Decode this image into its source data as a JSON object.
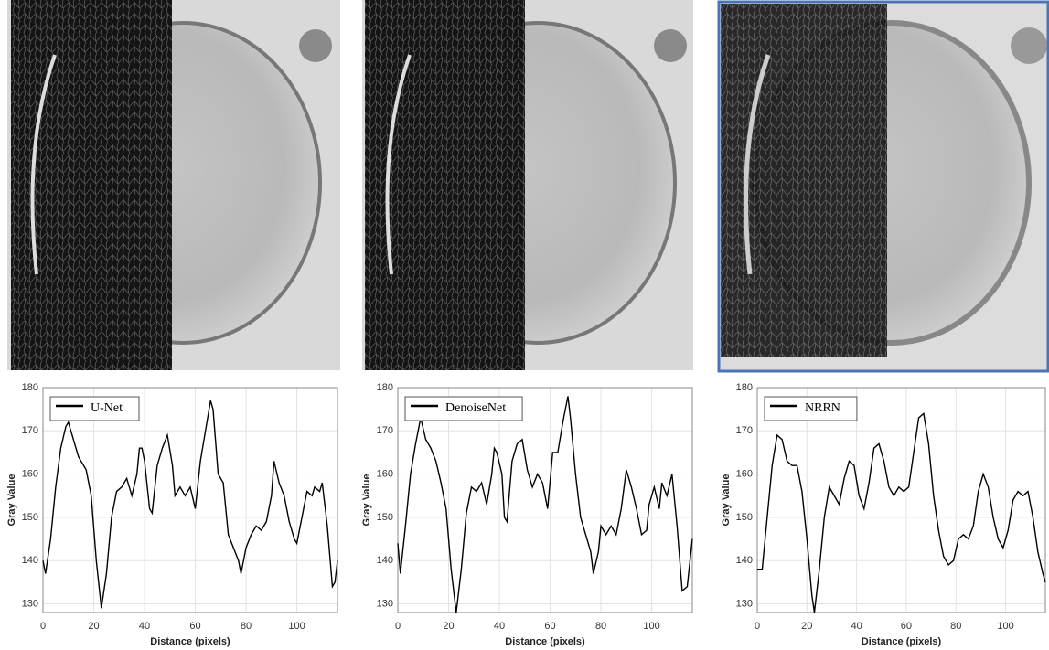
{
  "chart_data": [
    {
      "type": "line",
      "xlabel": "Distance (pixels)",
      "ylabel": "Gray Value",
      "x": [
        0,
        1,
        3,
        5,
        7,
        9,
        10,
        12,
        14,
        15,
        17,
        19,
        21,
        23,
        25,
        27,
        29,
        31,
        33,
        35,
        37,
        38,
        39,
        40,
        42,
        43,
        45,
        47,
        49,
        51,
        52,
        54,
        56,
        58,
        60,
        62,
        64,
        66,
        67,
        69,
        71,
        73,
        75,
        77,
        78,
        80,
        82,
        84,
        86,
        88,
        90,
        91,
        93,
        95,
        97,
        99,
        100,
        102,
        104,
        106,
        107,
        109,
        110,
        112,
        114,
        115,
        116
      ],
      "series": [
        {
          "name": "U-Net",
          "color": "#000000",
          "values": [
            140,
            137,
            145,
            157,
            166,
            171,
            172,
            168,
            164,
            163,
            161,
            155,
            140,
            129,
            137,
            150,
            156,
            157,
            159,
            155,
            160,
            166,
            166,
            163,
            152,
            151,
            162,
            166,
            169,
            162,
            155,
            157,
            155,
            157,
            152,
            163,
            170,
            177,
            175,
            160,
            158,
            146,
            143,
            140,
            137,
            143,
            146,
            148,
            147,
            149,
            155,
            163,
            158,
            155,
            149,
            145,
            144,
            150,
            156,
            155,
            157,
            156,
            158,
            148,
            134,
            135,
            140
          ]
        }
      ],
      "xlim": [
        0,
        116
      ],
      "ylim": [
        128,
        180
      ],
      "xticks": [
        0,
        20,
        40,
        60,
        80,
        100
      ],
      "yticks": [
        130,
        140,
        150,
        160,
        170,
        180
      ],
      "grid": true,
      "legend": "upper left"
    },
    {
      "type": "line",
      "xlabel": "Distance (pixels)",
      "ylabel": "Gray Value",
      "x": [
        0,
        1,
        3,
        5,
        7,
        9,
        11,
        13,
        15,
        17,
        19,
        21,
        23,
        25,
        27,
        29,
        31,
        33,
        35,
        37,
        38,
        39,
        41,
        42,
        43,
        45,
        47,
        49,
        51,
        53,
        55,
        57,
        59,
        61,
        63,
        65,
        67,
        68,
        70,
        72,
        74,
        76,
        77,
        79,
        80,
        82,
        84,
        86,
        88,
        90,
        92,
        94,
        96,
        98,
        99,
        101,
        103,
        104,
        106,
        108,
        110,
        112,
        114,
        116
      ],
      "series": [
        {
          "name": "DenoiseNet",
          "color": "#000000",
          "values": [
            144,
            137,
            148,
            160,
            167,
            173,
            168,
            166,
            163,
            158,
            152,
            138,
            128,
            138,
            151,
            157,
            156,
            158,
            153,
            160,
            166,
            165,
            160,
            150,
            149,
            163,
            167,
            168,
            161,
            157,
            160,
            158,
            152,
            165,
            165,
            172,
            178,
            173,
            160,
            150,
            146,
            142,
            137,
            142,
            148,
            146,
            148,
            146,
            152,
            161,
            157,
            152,
            146,
            147,
            153,
            157,
            152,
            158,
            155,
            160,
            148,
            133,
            134,
            145
          ]
        }
      ],
      "xlim": [
        0,
        116
      ],
      "ylim": [
        128,
        180
      ],
      "xticks": [
        0,
        20,
        40,
        60,
        80,
        100
      ],
      "yticks": [
        130,
        140,
        150,
        160,
        170,
        180
      ],
      "grid": true,
      "legend": "upper left"
    },
    {
      "type": "line",
      "xlabel": "Distance (pixels)",
      "ylabel": "Gray Value",
      "x": [
        0,
        2,
        4,
        6,
        8,
        10,
        12,
        14,
        16,
        18,
        20,
        22,
        23,
        25,
        27,
        29,
        31,
        33,
        35,
        37,
        39,
        41,
        43,
        45,
        47,
        49,
        51,
        53,
        55,
        57,
        59,
        61,
        63,
        65,
        67,
        69,
        71,
        73,
        75,
        77,
        79,
        81,
        83,
        85,
        87,
        89,
        91,
        93,
        95,
        97,
        99,
        101,
        103,
        105,
        107,
        109,
        111,
        113,
        115,
        116
      ],
      "series": [
        {
          "name": "NRRN",
          "color": "#000000",
          "values": [
            138,
            138,
            150,
            162,
            169,
            168,
            163,
            162,
            162,
            156,
            145,
            132,
            128,
            138,
            150,
            157,
            155,
            153,
            159,
            163,
            162,
            155,
            152,
            158,
            166,
            167,
            163,
            157,
            155,
            157,
            156,
            157,
            165,
            173,
            174,
            167,
            155,
            147,
            141,
            139,
            140,
            145,
            146,
            145,
            148,
            156,
            160,
            157,
            150,
            145,
            143,
            147,
            154,
            156,
            155,
            156,
            150,
            142,
            137,
            135
          ]
        }
      ],
      "xlim": [
        0,
        116
      ],
      "ylim": [
        128,
        180
      ],
      "xticks": [
        0,
        20,
        40,
        60,
        80,
        100
      ],
      "yticks": [
        130,
        140,
        150,
        160,
        170,
        180
      ],
      "grid": true,
      "legend": "upper left"
    }
  ]
}
